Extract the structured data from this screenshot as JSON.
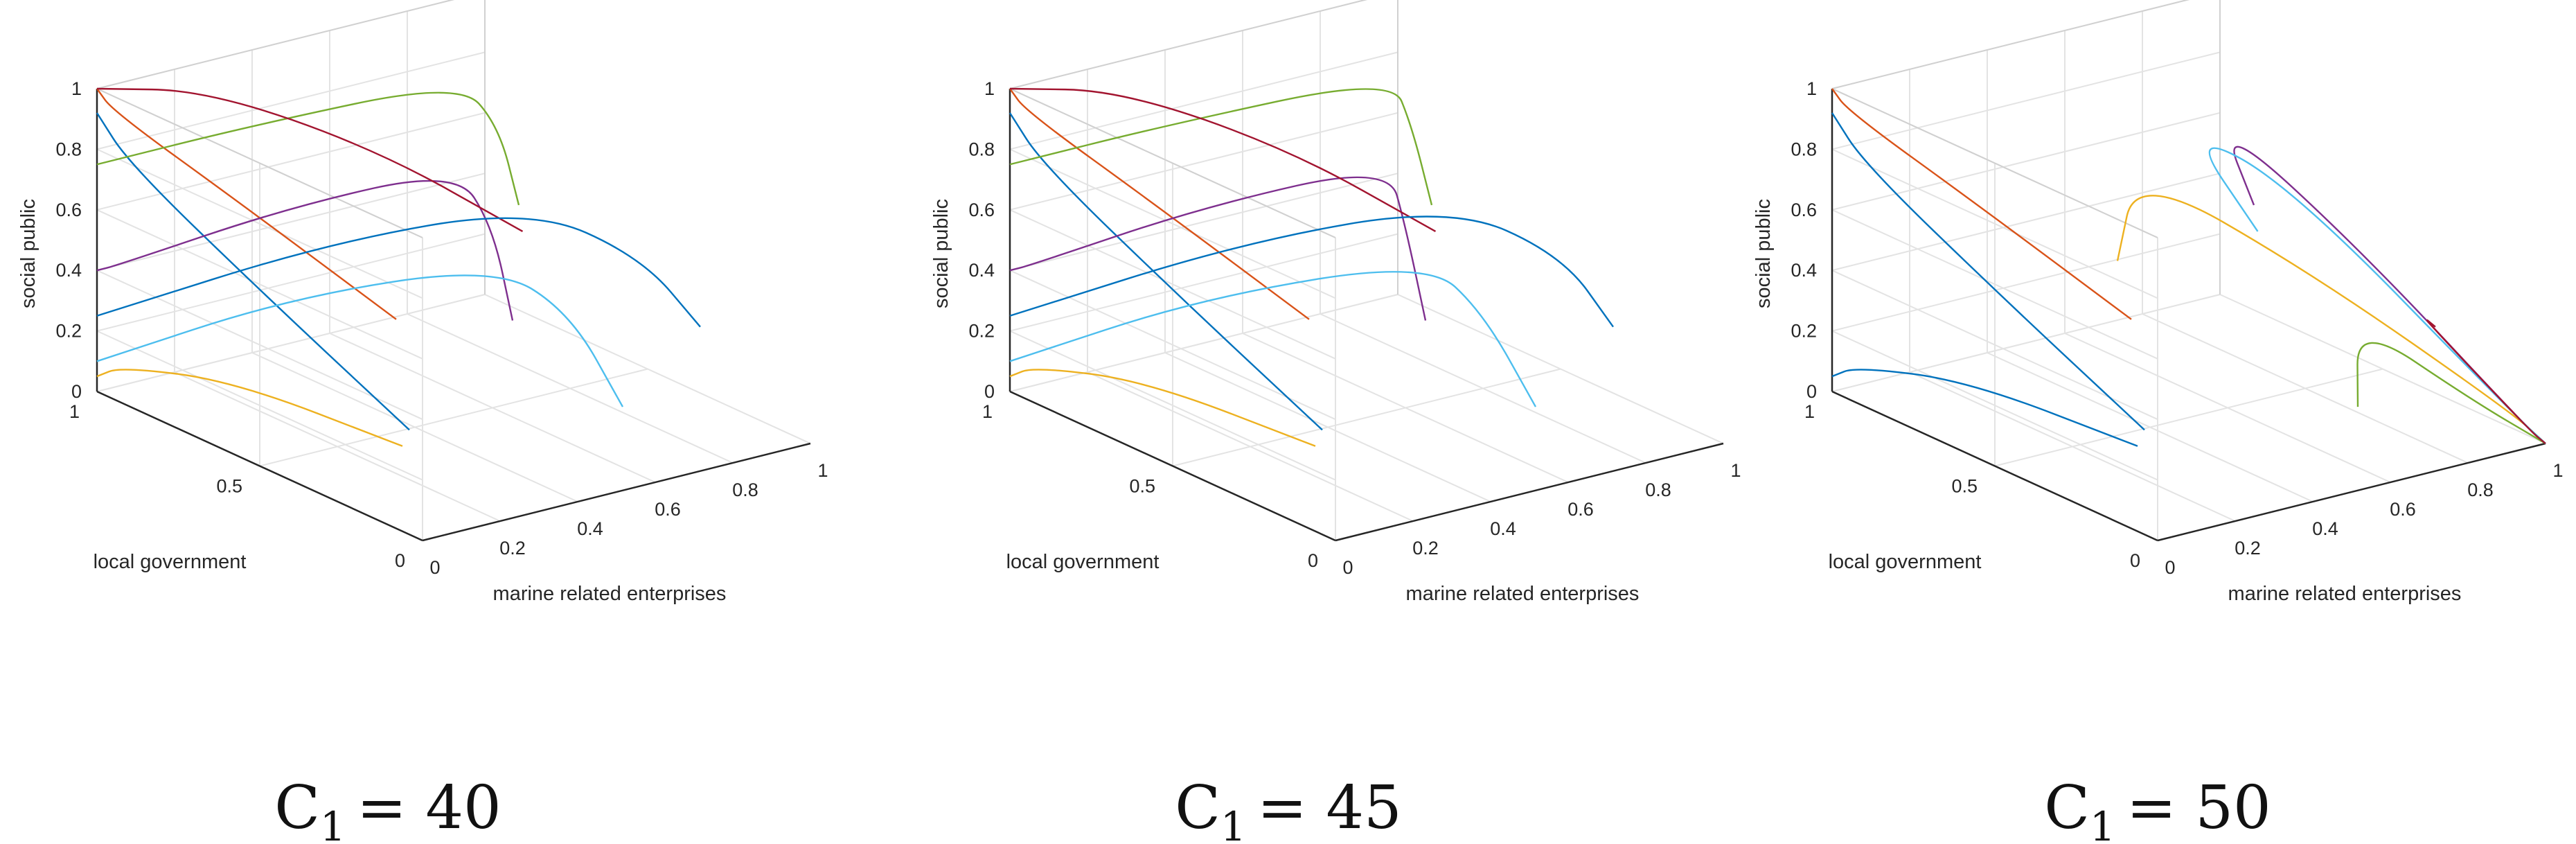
{
  "figure": {
    "panels": [
      {
        "caption_symbol": "C",
        "caption_subscript": "1",
        "caption_value": "= 40"
      },
      {
        "caption_symbol": "C",
        "caption_subscript": "1",
        "caption_value": "= 45"
      },
      {
        "caption_symbol": "C",
        "caption_subscript": "1",
        "caption_value": "= 50"
      }
    ]
  },
  "chart_data": [
    {
      "type": "line",
      "subtype": "3d-trajectory",
      "title": "",
      "caption": "C1 = 40",
      "parameter": {
        "name": "C1",
        "value": 40
      },
      "xlabel": "marine related enterprises",
      "ylabel": "local government",
      "zlabel": "social public",
      "xlim": [
        0,
        1
      ],
      "ylim": [
        0,
        1
      ],
      "zlim": [
        0,
        1
      ],
      "xticks": [
        "0",
        "0.2",
        "0.4",
        "0.6",
        "0.8",
        "1"
      ],
      "yticks": [
        "0",
        "0.5",
        "1"
      ],
      "zticks": [
        "0",
        "0.2",
        "0.4",
        "0.6",
        "0.8",
        "1"
      ],
      "grid": true,
      "legend": "none",
      "description_of_data": "Evolution trajectories from many initial points in the unit cube; trajectories converge toward the edge x=0, y=1 and toward the corner region near (x=0, y=1, z=1)/(x=0,y=1,z=0), several looping out toward x≈0.7–0.9.",
      "series": [
        {
          "points": [
            [
              0.05,
              0.1,
              0.3
            ],
            [
              0.02,
              0.5,
              0.55
            ],
            [
              0.0,
              0.9,
              0.8
            ],
            [
              0.0,
              1.0,
              0.92
            ]
          ]
        },
        {
          "points": [
            [
              0.1,
              0.2,
              0.6
            ],
            [
              0.04,
              0.6,
              0.8
            ],
            [
              0.0,
              0.95,
              0.95
            ],
            [
              0.0,
              1.0,
              1.0
            ]
          ]
        },
        {
          "points": [
            [
              0.2,
              0.3,
              0.1
            ],
            [
              0.1,
              0.7,
              0.15
            ],
            [
              0.02,
              0.95,
              0.1
            ],
            [
              0.0,
              1.0,
              0.05
            ]
          ]
        },
        {
          "points": [
            [
              0.4,
              0.2,
              0.5
            ],
            [
              0.6,
              0.5,
              0.6
            ],
            [
              0.8,
              0.85,
              0.55
            ],
            [
              0.5,
              1.0,
              0.45
            ],
            [
              0.05,
              1.0,
              0.4
            ],
            [
              0.0,
              1.0,
              0.4
            ]
          ]
        },
        {
          "points": [
            [
              0.5,
              0.3,
              0.8
            ],
            [
              0.7,
              0.6,
              0.85
            ],
            [
              0.85,
              0.9,
              0.8
            ],
            [
              0.4,
              1.0,
              0.75
            ],
            [
              0.0,
              1.0,
              0.75
            ]
          ]
        },
        {
          "points": [
            [
              0.6,
              0.1,
              0.2
            ],
            [
              0.8,
              0.5,
              0.25
            ],
            [
              0.9,
              0.85,
              0.2
            ],
            [
              0.5,
              1.0,
              0.15
            ],
            [
              0.0,
              1.0,
              0.1
            ]
          ]
        },
        {
          "points": [
            [
              0.3,
              0.05,
              0.9
            ],
            [
              0.3,
              0.5,
              0.95
            ],
            [
              0.2,
              0.9,
              0.98
            ],
            [
              0.0,
              1.0,
              1.0
            ]
          ]
        },
        {
          "points": [
            [
              0.8,
              0.1,
              0.4
            ],
            [
              0.9,
              0.4,
              0.45
            ],
            [
              0.95,
              0.8,
              0.4
            ],
            [
              0.6,
              1.0,
              0.3
            ],
            [
              0.0,
              1.0,
              0.25
            ]
          ]
        }
      ]
    },
    {
      "type": "line",
      "subtype": "3d-trajectory",
      "title": "",
      "caption": "C1 = 45",
      "parameter": {
        "name": "C1",
        "value": 45
      },
      "xlabel": "marine related enterprises",
      "ylabel": "local government",
      "zlabel": "social public",
      "xlim": [
        0,
        1
      ],
      "ylim": [
        0,
        1
      ],
      "zlim": [
        0,
        1
      ],
      "xticks": [
        "0",
        "0.2",
        "0.4",
        "0.6",
        "0.8",
        "1"
      ],
      "yticks": [
        "0",
        "0.5",
        "1"
      ],
      "zticks": [
        "0",
        "0.2",
        "0.4",
        "0.6",
        "0.8",
        "1"
      ],
      "grid": true,
      "legend": "none",
      "description_of_data": "Similar to C1=40; trajectories converge to the x=0, y=1 edge with loops reaching x≈0.8–0.9.",
      "series": [
        {
          "points": [
            [
              0.05,
              0.1,
              0.3
            ],
            [
              0.02,
              0.5,
              0.55
            ],
            [
              0.0,
              0.9,
              0.8
            ],
            [
              0.0,
              1.0,
              0.92
            ]
          ]
        },
        {
          "points": [
            [
              0.1,
              0.2,
              0.6
            ],
            [
              0.04,
              0.6,
              0.8
            ],
            [
              0.0,
              0.95,
              0.95
            ],
            [
              0.0,
              1.0,
              1.0
            ]
          ]
        },
        {
          "points": [
            [
              0.2,
              0.3,
              0.1
            ],
            [
              0.1,
              0.7,
              0.15
            ],
            [
              0.02,
              0.95,
              0.1
            ],
            [
              0.0,
              1.0,
              0.05
            ]
          ]
        },
        {
          "points": [
            [
              0.4,
              0.2,
              0.5
            ],
            [
              0.6,
              0.5,
              0.6
            ],
            [
              0.85,
              0.85,
              0.55
            ],
            [
              0.5,
              1.0,
              0.45
            ],
            [
              0.05,
              1.0,
              0.4
            ],
            [
              0.0,
              1.0,
              0.4
            ]
          ]
        },
        {
          "points": [
            [
              0.5,
              0.3,
              0.8
            ],
            [
              0.7,
              0.6,
              0.85
            ],
            [
              0.9,
              0.9,
              0.8
            ],
            [
              0.4,
              1.0,
              0.75
            ],
            [
              0.0,
              1.0,
              0.75
            ]
          ]
        },
        {
          "points": [
            [
              0.6,
              0.1,
              0.2
            ],
            [
              0.8,
              0.5,
              0.25
            ],
            [
              0.95,
              0.85,
              0.2
            ],
            [
              0.5,
              1.0,
              0.15
            ],
            [
              0.0,
              1.0,
              0.1
            ]
          ]
        },
        {
          "points": [
            [
              0.3,
              0.05,
              0.9
            ],
            [
              0.3,
              0.5,
              0.95
            ],
            [
              0.2,
              0.9,
              0.98
            ],
            [
              0.0,
              1.0,
              1.0
            ]
          ]
        },
        {
          "points": [
            [
              0.8,
              0.1,
              0.4
            ],
            [
              0.92,
              0.4,
              0.45
            ],
            [
              0.97,
              0.8,
              0.4
            ],
            [
              0.6,
              1.0,
              0.3
            ],
            [
              0.0,
              1.0,
              0.25
            ]
          ]
        }
      ]
    },
    {
      "type": "line",
      "subtype": "3d-trajectory",
      "title": "",
      "caption": "C1 = 50",
      "parameter": {
        "name": "C1",
        "value": 50
      },
      "xlabel": "marine related enterprises",
      "ylabel": "local government",
      "zlabel": "social public",
      "xlim": [
        0,
        1
      ],
      "ylim": [
        0,
        1
      ],
      "zlim": [
        0,
        1
      ],
      "xticks": [
        "0",
        "0.2",
        "0.4",
        "0.6",
        "0.8",
        "1"
      ],
      "yticks": [
        "0",
        "0.5",
        "1"
      ],
      "zticks": [
        "0",
        "0.2",
        "0.4",
        "0.6",
        "0.8",
        "1"
      ],
      "grid": true,
      "legend": "none",
      "description_of_data": "Trajectories converge strongly toward the corner x=1, y=0, z=0 with a dense fan of curves; some still go to the x=0, y=1 edge.",
      "series": [
        {
          "points": [
            [
              0.05,
              0.1,
              0.3
            ],
            [
              0.02,
              0.5,
              0.55
            ],
            [
              0.0,
              0.9,
              0.8
            ],
            [
              0.0,
              1.0,
              0.92
            ]
          ]
        },
        {
          "points": [
            [
              0.1,
              0.2,
              0.6
            ],
            [
              0.04,
              0.6,
              0.8
            ],
            [
              0.0,
              0.95,
              0.95
            ],
            [
              0.0,
              1.0,
              1.0
            ]
          ]
        },
        {
          "points": [
            [
              0.4,
              0.6,
              0.5
            ],
            [
              0.7,
              0.9,
              0.55
            ],
            [
              0.9,
              0.6,
              0.3
            ],
            [
              1.0,
              0.1,
              0.05
            ],
            [
              1.0,
              0.0,
              0.0
            ]
          ]
        },
        {
          "points": [
            [
              0.5,
              0.3,
              0.8
            ],
            [
              0.75,
              0.7,
              0.8
            ],
            [
              0.95,
              0.5,
              0.4
            ],
            [
              1.0,
              0.05,
              0.02
            ],
            [
              1.0,
              0.0,
              0.0
            ]
          ]
        },
        {
          "points": [
            [
              0.6,
              0.1,
              0.2
            ],
            [
              0.85,
              0.4,
              0.25
            ],
            [
              0.98,
              0.2,
              0.05
            ],
            [
              1.0,
              0.0,
              0.0
            ]
          ]
        },
        {
          "points": [
            [
              0.3,
              0.05,
              0.9
            ],
            [
              0.5,
              0.5,
              0.95
            ],
            [
              0.85,
              0.6,
              0.6
            ],
            [
              1.0,
              0.1,
              0.05
            ],
            [
              1.0,
              0.0,
              0.0
            ]
          ]
        },
        {
          "points": [
            [
              0.8,
              0.1,
              0.4
            ],
            [
              0.93,
              0.3,
              0.3
            ],
            [
              1.0,
              0.05,
              0.02
            ],
            [
              1.0,
              0.0,
              0.0
            ]
          ]
        },
        {
          "points": [
            [
              0.2,
              0.3,
              0.1
            ],
            [
              0.1,
              0.7,
              0.15
            ],
            [
              0.02,
              0.95,
              0.1
            ],
            [
              0.0,
              1.0,
              0.05
            ]
          ]
        }
      ]
    }
  ]
}
